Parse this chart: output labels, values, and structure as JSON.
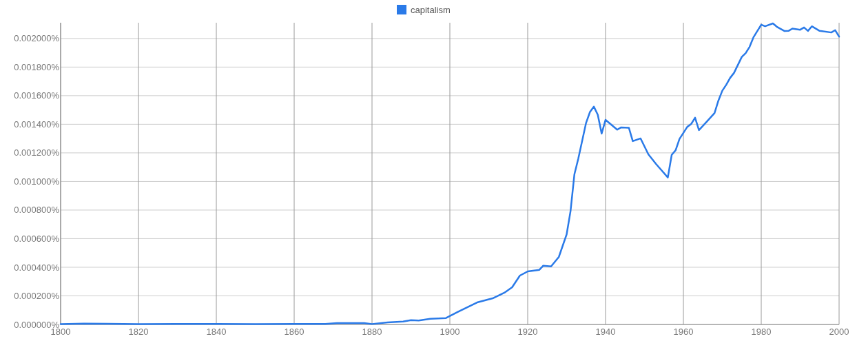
{
  "chart_data": {
    "type": "line",
    "legend": "top",
    "grid": true,
    "xlim": [
      1800,
      2000
    ],
    "xticks": [
      1800,
      1820,
      1840,
      1860,
      1880,
      1900,
      1920,
      1940,
      1960,
      1980,
      2000
    ],
    "ylim": [
      0,
      0.00211
    ],
    "yticks": [
      {
        "value": 0,
        "label": "0.000000%"
      },
      {
        "value": 0.0002,
        "label": "0.000200%"
      },
      {
        "value": 0.0004,
        "label": "0.000400%"
      },
      {
        "value": 0.0006,
        "label": "0.000600%"
      },
      {
        "value": 0.0008,
        "label": "0.000800%"
      },
      {
        "value": 0.001,
        "label": "0.001000%"
      },
      {
        "value": 0.0012,
        "label": "0.001200%"
      },
      {
        "value": 0.0014,
        "label": "0.001400%"
      },
      {
        "value": 0.0016,
        "label": "0.001600%"
      },
      {
        "value": 0.0018,
        "label": "0.001800%"
      },
      {
        "value": 0.002,
        "label": "0.002000%"
      }
    ],
    "series": [
      {
        "name": "capitalism",
        "color": "#2a7ae8",
        "x": [
          1800,
          1806,
          1812,
          1820,
          1830,
          1840,
          1850,
          1860,
          1868,
          1871,
          1878,
          1880,
          1884,
          1888,
          1890,
          1892,
          1895,
          1899,
          1902,
          1907,
          1911,
          1914,
          1916,
          1918,
          1920,
          1923,
          1924,
          1926,
          1928,
          1930,
          1931,
          1932,
          1933,
          1935,
          1936,
          1937,
          1938,
          1939,
          1940,
          1943,
          1944,
          1946,
          1947,
          1949,
          1951,
          1953,
          1956,
          1957,
          1958,
          1959,
          1961,
          1962,
          1963,
          1964,
          1966,
          1968,
          1969,
          1970,
          1971,
          1972,
          1973,
          1975,
          1976,
          1977,
          1978,
          1980,
          1981,
          1983,
          1984,
          1986,
          1987,
          1988,
          1990,
          1991,
          1992,
          1993,
          1995,
          1998,
          1999,
          2000
        ],
        "values": [
          3e-06,
          6e-06,
          5e-06,
          3e-06,
          4e-06,
          4e-06,
          3e-06,
          4e-06,
          4e-06,
          1e-05,
          1e-05,
          3e-06,
          1.5e-05,
          2e-05,
          3e-05,
          2.8e-05,
          4e-05,
          4.5e-05,
          8.7e-05,
          0.000154,
          0.000183,
          0.000222,
          0.00026,
          0.000342,
          0.000371,
          0.000382,
          0.000411,
          0.000406,
          0.000472,
          0.00063,
          0.000792,
          0.00105,
          0.00116,
          0.00141,
          0.001486,
          0.001523,
          0.001467,
          0.001335,
          0.001431,
          0.001362,
          0.001378,
          0.001375,
          0.001282,
          0.001301,
          0.00119,
          0.001121,
          0.001028,
          0.001186,
          0.001218,
          0.001298,
          0.001382,
          0.001402,
          0.001446,
          0.001359,
          0.001418,
          0.001478,
          0.001566,
          0.001635,
          0.001676,
          0.001724,
          0.001759,
          0.001871,
          0.001897,
          0.001941,
          0.002008,
          0.002096,
          0.002085,
          0.002105,
          0.002082,
          0.002052,
          0.002053,
          0.002069,
          0.002061,
          0.002077,
          0.002053,
          0.002085,
          0.002053,
          0.002042,
          0.002058,
          0.002013
        ]
      }
    ]
  }
}
